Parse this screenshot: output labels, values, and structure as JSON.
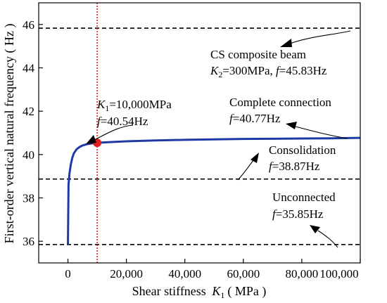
{
  "chart_data": {
    "type": "line",
    "xlabel_prefix": "Shear stiffness ",
    "xlabel_var": "K",
    "xlabel_sub": "1",
    "xlabel_unit": "( MPa )",
    "ylabel": "First-order vertical natural frequency ( Hz )",
    "xlim": [
      -10000,
      100000
    ],
    "ylim": [
      35,
      47
    ],
    "x_ticks": [
      0,
      20000,
      40000,
      60000,
      80000,
      100000
    ],
    "x_tick_labels": [
      "0",
      "20,000",
      "40,000",
      "60,000",
      "80,000",
      "100,000"
    ],
    "y_ticks": [
      36,
      38,
      40,
      42,
      44,
      46
    ],
    "y_tick_labels": [
      "36",
      "38",
      "40",
      "42",
      "44",
      "46"
    ],
    "grid": false,
    "series": [
      {
        "color": "#1f3aa6",
        "x": [
          0,
          200,
          500,
          1000,
          1500,
          2000,
          3000,
          4000,
          5000,
          6000,
          7000,
          8000,
          9000,
          10000,
          15000,
          20000,
          30000,
          40000,
          50000,
          60000,
          70000,
          80000,
          90000,
          100000
        ],
        "y": [
          35.85,
          38.6,
          39.1,
          39.55,
          39.85,
          40.05,
          40.25,
          40.35,
          40.42,
          40.46,
          40.49,
          40.51,
          40.53,
          40.54,
          40.58,
          40.61,
          40.65,
          40.68,
          40.7,
          40.72,
          40.73,
          40.74,
          40.75,
          40.77
        ]
      }
    ],
    "reference_lines": [
      {
        "y": 45.83,
        "color": "#000000",
        "style": "dashed"
      },
      {
        "y": 38.87,
        "color": "#000000",
        "style": "dashed"
      },
      {
        "y": 35.85,
        "color": "#000000",
        "style": "dashed"
      }
    ],
    "vertical_line": {
      "x": 10000,
      "color": "#e02020",
      "style": "dotted"
    },
    "marker": {
      "x": 10000,
      "y": 40.54,
      "color": "#e02020"
    },
    "annotations": {
      "cs_beam": {
        "line1": "CS composite beam",
        "k_var": "K",
        "k_sub": "2",
        "k_rest": "=300MPa, ",
        "f_var": "f",
        "f_rest": "=45.83Hz"
      },
      "k1_point": {
        "k_var": "K",
        "k_sub": "1",
        "k_rest": "=10,000MPa",
        "f_var": "f",
        "f_rest": "=40.54Hz"
      },
      "complete": {
        "line1": "Complete connection",
        "f_var": "f",
        "f_rest": "=40.77Hz"
      },
      "consolidation": {
        "line1": "Consolidation",
        "f_var": "f",
        "f_rest": "=38.87Hz"
      },
      "unconnected": {
        "line1": "Unconnected",
        "f_var": "f",
        "f_rest": "=35.85Hz"
      }
    }
  }
}
